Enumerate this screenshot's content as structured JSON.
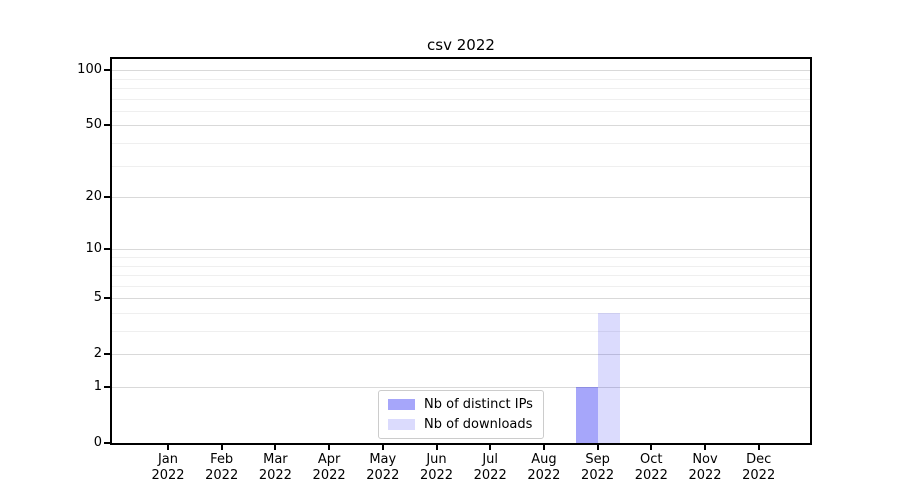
{
  "chart_data": {
    "type": "bar",
    "title": "csv 2022",
    "x_tick_labels": [
      "Jan\n2022",
      "Feb\n2022",
      "Mar\n2022",
      "Apr\n2022",
      "May\n2022",
      "Jun\n2022",
      "Jul\n2022",
      "Aug\n2022",
      "Sep\n2022",
      "Oct\n2022",
      "Nov\n2022",
      "Dec\n2022"
    ],
    "series": [
      {
        "name": "Nb of distinct IPs",
        "color": "rgba(0,0,240,0.35)",
        "values": [
          0,
          0,
          0,
          0,
          0,
          0,
          0,
          0,
          1,
          0,
          0,
          0
        ]
      },
      {
        "name": "Nb of downloads",
        "color": "rgba(0,0,240,0.14)",
        "values": [
          0,
          0,
          0,
          0,
          0,
          0,
          0,
          0,
          4,
          0,
          0,
          0
        ]
      }
    ],
    "y_scale": "log1p",
    "y_major_ticks": [
      0,
      1,
      2,
      5,
      10,
      20,
      50,
      100
    ],
    "y_minor_ticks": [
      3,
      4,
      6,
      7,
      8,
      9,
      30,
      40,
      60,
      70,
      80,
      90
    ],
    "ylim": [
      0,
      115
    ],
    "grid": "both",
    "legend_position": "lower center",
    "colors": {
      "grid_major": "#d9d9d9",
      "grid_minor": "#efefef",
      "spine": "#000000",
      "legend_border": "#cccccc",
      "background": "#ffffff"
    }
  }
}
